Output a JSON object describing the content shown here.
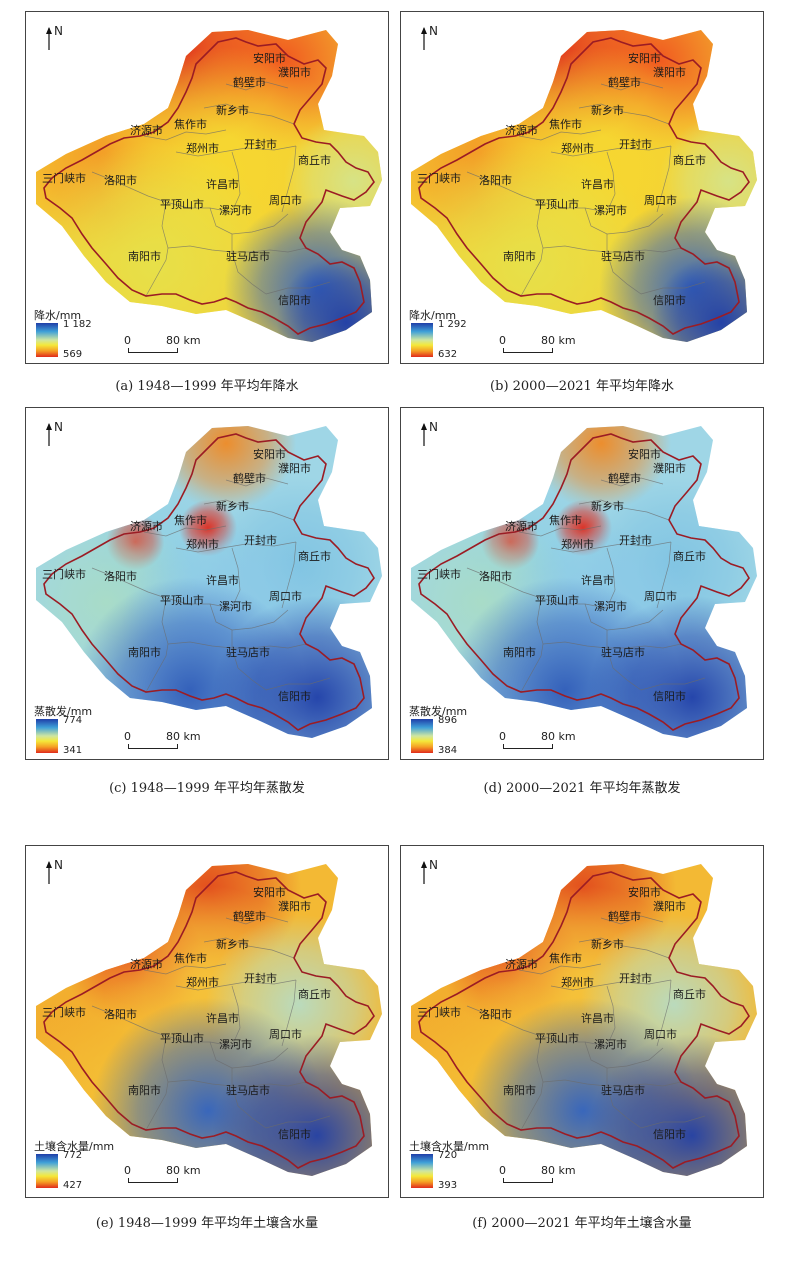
{
  "north_label": "N",
  "scale": {
    "zero": "0",
    "distance": "80 km"
  },
  "colors": {
    "high": "#1f3ea8",
    "mid": "#f5e83a",
    "low": "#e02a1c",
    "boundary": "#9b1c24"
  },
  "cities": {
    "anyang": "安阳市",
    "puyang": "濮阳市",
    "hebi": "鹤壁市",
    "xinxiang": "新乡市",
    "jiyuan": "济源市",
    "jiaozuo": "焦作市",
    "zhengzhou": "郑州市",
    "kaifeng": "开封市",
    "shangqiu": "商丘市",
    "sanmenxia": "三门峡市",
    "luoyang": "洛阳市",
    "xuchang": "许昌市",
    "zhoukou": "周口市",
    "pingdingshan": "平顶山市",
    "luohe": "漯河市",
    "nanyang": "南阳市",
    "zhumadian": "驻马店市",
    "xinyang": "信阳市"
  },
  "panels": [
    {
      "id": "a",
      "variable": "precipitation",
      "legend_title": "降水/mm",
      "legend_max": "1 182",
      "legend_min": "569",
      "caption": "(a) 1948—1999 年平均年降水"
    },
    {
      "id": "b",
      "variable": "precipitation",
      "legend_title": "降水/mm",
      "legend_max": "1 292",
      "legend_min": "632",
      "caption": "(b) 2000—2021 年平均年降水"
    },
    {
      "id": "c",
      "variable": "evapotranspiration",
      "legend_title": "蒸散发/mm",
      "legend_max": "774",
      "legend_min": "341",
      "caption": "(c) 1948—1999 年平均年蒸散发"
    },
    {
      "id": "d",
      "variable": "evapotranspiration",
      "legend_title": "蒸散发/mm",
      "legend_max": "896",
      "legend_min": "384",
      "caption": "(d) 2000—2021 年平均年蒸散发"
    },
    {
      "id": "e",
      "variable": "soil_moisture",
      "legend_title": "土壤含水量/mm",
      "legend_max": "772",
      "legend_min": "427",
      "caption": "(e) 1948—1999 年平均年土壤含水量"
    },
    {
      "id": "f",
      "variable": "soil_moisture",
      "legend_title": "土壤含水量/mm",
      "legend_max": "720",
      "legend_min": "393",
      "caption": "(f) 2000—2021 年平均年土壤含水量"
    }
  ]
}
